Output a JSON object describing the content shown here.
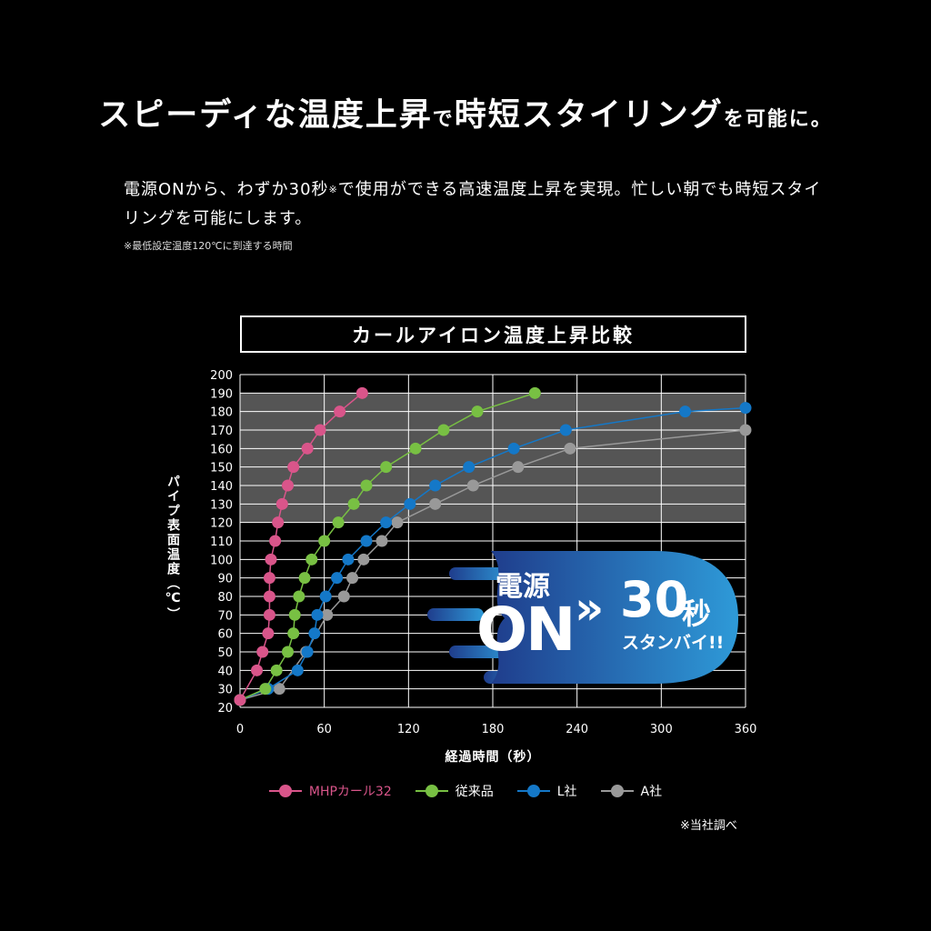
{
  "headline": {
    "part1": "スピーディな温度上昇",
    "part2": "で",
    "part3": "時短スタイリング",
    "part4": "を可能に。"
  },
  "body": {
    "text1": "電源ONから、わずか30秒",
    "mark": "※",
    "text2": "で使用ができる高速温度上昇を実現。忙しい朝でも時短スタイリングを可能にします。"
  },
  "footnote": "※最低設定温度120℃に到達する時間",
  "chart_title": "カールアイロン温度上昇比較",
  "badge": {
    "dengen": "電源",
    "on": "ON",
    "arrow": "»",
    "num": "30",
    "unit": "秒",
    "standby": "スタンバイ!!"
  },
  "source": "※当社調べ",
  "colors": {
    "background": "#000000",
    "plot_band": "#555555",
    "badge_start": "#1f3d8c",
    "badge_end": "#2e9ad8"
  },
  "chart_data": {
    "type": "line",
    "title": "カールアイロン温度上昇比較",
    "xlabel": "経過時間（秒）",
    "ylabel": "パイプ表面温度（℃）",
    "xlim": [
      0,
      360
    ],
    "ylim": [
      20,
      200
    ],
    "xticks": [
      0,
      60,
      120,
      180,
      240,
      300,
      360
    ],
    "yticks": [
      20,
      30,
      40,
      50,
      60,
      70,
      80,
      90,
      100,
      110,
      120,
      130,
      140,
      150,
      160,
      170,
      180,
      190,
      200
    ],
    "grid": true,
    "legend_position": "bottom",
    "series": [
      {
        "name": "MHPカール32",
        "color": "#d9558a",
        "points": [
          [
            0,
            24
          ],
          [
            12,
            40
          ],
          [
            16,
            50
          ],
          [
            20,
            60
          ],
          [
            21,
            70
          ],
          [
            21,
            80
          ],
          [
            21,
            90
          ],
          [
            22,
            100
          ],
          [
            25,
            110
          ],
          [
            27,
            120
          ],
          [
            30,
            130
          ],
          [
            34,
            140
          ],
          [
            38,
            150
          ],
          [
            48,
            160
          ],
          [
            57,
            170
          ],
          [
            71,
            180
          ],
          [
            87,
            190
          ]
        ]
      },
      {
        "name": "従来品",
        "color": "#78c043",
        "points": [
          [
            0,
            24
          ],
          [
            18,
            30
          ],
          [
            26,
            40
          ],
          [
            34,
            50
          ],
          [
            38,
            60
          ],
          [
            39,
            70
          ],
          [
            42,
            80
          ],
          [
            46,
            90
          ],
          [
            51,
            100
          ],
          [
            60,
            110
          ],
          [
            70,
            120
          ],
          [
            81,
            130
          ],
          [
            90,
            140
          ],
          [
            104,
            150
          ],
          [
            125,
            160
          ],
          [
            145,
            170
          ],
          [
            169,
            180
          ],
          [
            210,
            190
          ]
        ]
      },
      {
        "name": "L社",
        "color": "#1478c8",
        "points": [
          [
            0,
            24
          ],
          [
            20,
            30
          ],
          [
            41,
            40
          ],
          [
            48,
            50
          ],
          [
            53,
            60
          ],
          [
            55,
            70
          ],
          [
            61,
            80
          ],
          [
            69,
            90
          ],
          [
            77,
            100
          ],
          [
            90,
            110
          ],
          [
            104,
            120
          ],
          [
            121,
            130
          ],
          [
            139,
            140
          ],
          [
            163,
            150
          ],
          [
            195,
            160
          ],
          [
            232,
            170
          ],
          [
            317,
            180
          ],
          [
            360,
            182
          ]
        ]
      },
      {
        "name": "A社",
        "color": "#999999",
        "points": [
          [
            0,
            24
          ],
          [
            28,
            30
          ],
          [
            47,
            50
          ],
          [
            62,
            70
          ],
          [
            74,
            80
          ],
          [
            80,
            90
          ],
          [
            88,
            100
          ],
          [
            101,
            110
          ],
          [
            112,
            120
          ],
          [
            139,
            130
          ],
          [
            166,
            140
          ],
          [
            198,
            150
          ],
          [
            235,
            160
          ],
          [
            360,
            170
          ]
        ]
      }
    ]
  }
}
